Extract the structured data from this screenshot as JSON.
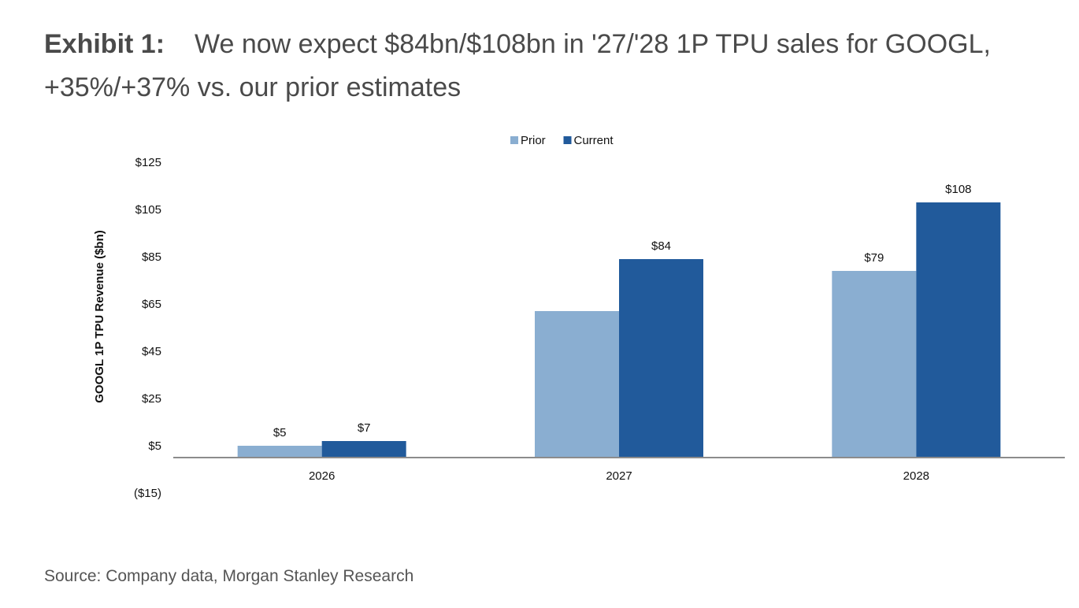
{
  "header": {
    "exhibit_label": "Exhibit 1:",
    "title_line1": "We now expect $84bn/$108bn in '27/'28 1P TPU sales for GOOGL,",
    "title_line2": "+35%/+37% vs. our prior estimates"
  },
  "footer": {
    "source": "Source: Company data, Morgan Stanley Research"
  },
  "chart_data": {
    "type": "bar",
    "categories": [
      "2026",
      "2027",
      "2028"
    ],
    "series": [
      {
        "name": "Prior",
        "values": [
          5,
          62,
          79
        ],
        "labels": [
          "$5",
          "",
          "$79"
        ],
        "color": "#8aaed1"
      },
      {
        "name": "Current",
        "values": [
          7,
          84,
          108
        ],
        "labels": [
          "$7",
          "$84",
          "$108"
        ],
        "color": "#215a9b"
      }
    ],
    "ylabel": "GOOGL 1P TPU Revenue ($bn)",
    "xlabel": "",
    "ylim": [
      -15,
      125
    ],
    "y_ticks": [
      125,
      105,
      85,
      65,
      45,
      25,
      5,
      -15
    ],
    "y_tick_labels": [
      "$125",
      "$105",
      "$85",
      "$65",
      "$45",
      "$25",
      "$5",
      "($15)"
    ],
    "x_baseline": 0,
    "legend_position": "top-center",
    "grid": false
  }
}
